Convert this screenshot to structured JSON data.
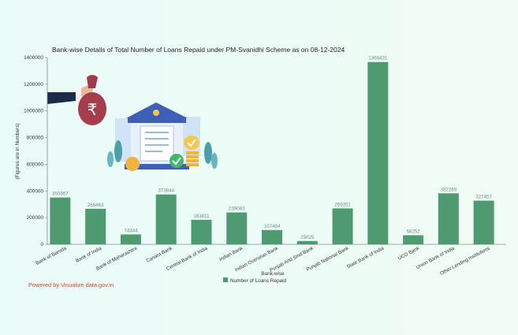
{
  "footer_text": "Powered by Visualize data.gov.in",
  "chart_data": {
    "type": "bar",
    "title": "Bank-wise Details of Total Number of Loans Repaid under PM-Svanidhi Scheme as on 08-12-2024",
    "xlabel": "Bank-wise",
    "ylabel": "(Figures are in Numbers)",
    "ylim": [
      0,
      1400000
    ],
    "yticks": [
      0,
      200000,
      400000,
      600000,
      800000,
      1000000,
      1200000,
      1400000
    ],
    "tick_labels": [
      "0",
      "200000",
      "400000",
      "600000",
      "800000",
      "1000000",
      "1200000",
      "1400000"
    ],
    "categories": [
      "Bank of Baroda",
      "Bank of India",
      "Bank of Maharashtra",
      "Canara Bank",
      "Central Bank of India",
      "Indian Bank",
      "Indian Overseas Bank",
      "Punjab And Sind Bank",
      "Punjab National Bank",
      "State Bank of India",
      "UCO Bank",
      "Union Bank of India",
      "Other Lending Institutions"
    ],
    "series": [
      {
        "name": "Number of Loans Repaid",
        "color": "#4e9b71",
        "values": [
          350867,
          266463,
          74344,
          373844,
          183811,
          239083,
          107484,
          25025,
          269351,
          1366431,
          68252,
          382269,
          327457
        ],
        "labels": [
          "350867",
          "266463",
          "74344",
          "373844",
          "183811",
          "239083",
          "107484",
          "25025",
          "269351",
          "1366431",
          "68252",
          "382269",
          "327457"
        ]
      }
    ],
    "legend_position": "bottom",
    "grid": false
  }
}
